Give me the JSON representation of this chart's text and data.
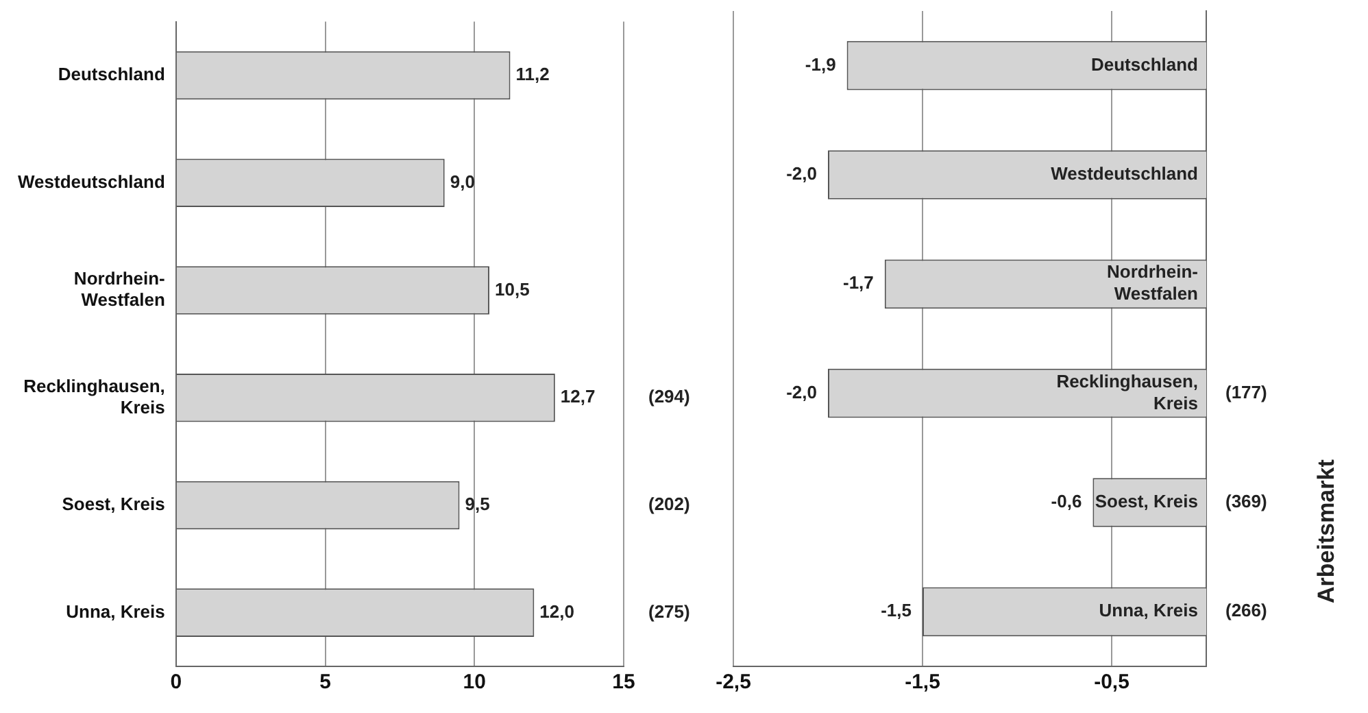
{
  "chart_data": [
    {
      "type": "bar",
      "orientation": "horizontal",
      "categories": [
        "Deutschland",
        "Westdeutschland",
        "Nordrhein-Westfalen",
        "Recklinghausen, Kreis",
        "Soest, Kreis",
        "Unna, Kreis"
      ],
      "values": [
        11.2,
        9.0,
        10.5,
        12.7,
        9.5,
        12.0
      ],
      "value_labels": [
        "11,2",
        "9,0",
        "10,5",
        "12,7",
        "9,5",
        "12,0"
      ],
      "color": "#d4d4d4",
      "xlim": [
        0,
        15
      ],
      "xticks": [
        0,
        5,
        10,
        15
      ],
      "grid": "x",
      "annotations": [
        "(294)",
        "(202)",
        "(275)"
      ]
    },
    {
      "type": "bar",
      "orientation": "horizontal",
      "categories": [
        "Deutschland",
        "Westdeutschland",
        "Nordrhein-Westfalen",
        "Recklinghausen, Kreis",
        "Soest, Kreis",
        "Unna, Kreis"
      ],
      "values": [
        -1.9,
        -2.0,
        -1.7,
        -2.0,
        -0.6,
        -1.5
      ],
      "value_labels": [
        "-1,9",
        "-2,0",
        "-1,7",
        "-2,0",
        "-0,6",
        "-1,5"
      ],
      "color": "#d4d4d4",
      "xlim": [
        -2.5,
        0
      ],
      "xticks": [
        {
          "value": -2.5,
          "label": "-2,5"
        },
        {
          "value": -1.5,
          "label": "-1,5"
        },
        {
          "value": -0.5,
          "label": "-0,5"
        }
      ],
      "grid": "x",
      "annotations": [
        "(177)",
        "(369)",
        "(266)",
        "Arbeitsmarkt"
      ]
    }
  ]
}
